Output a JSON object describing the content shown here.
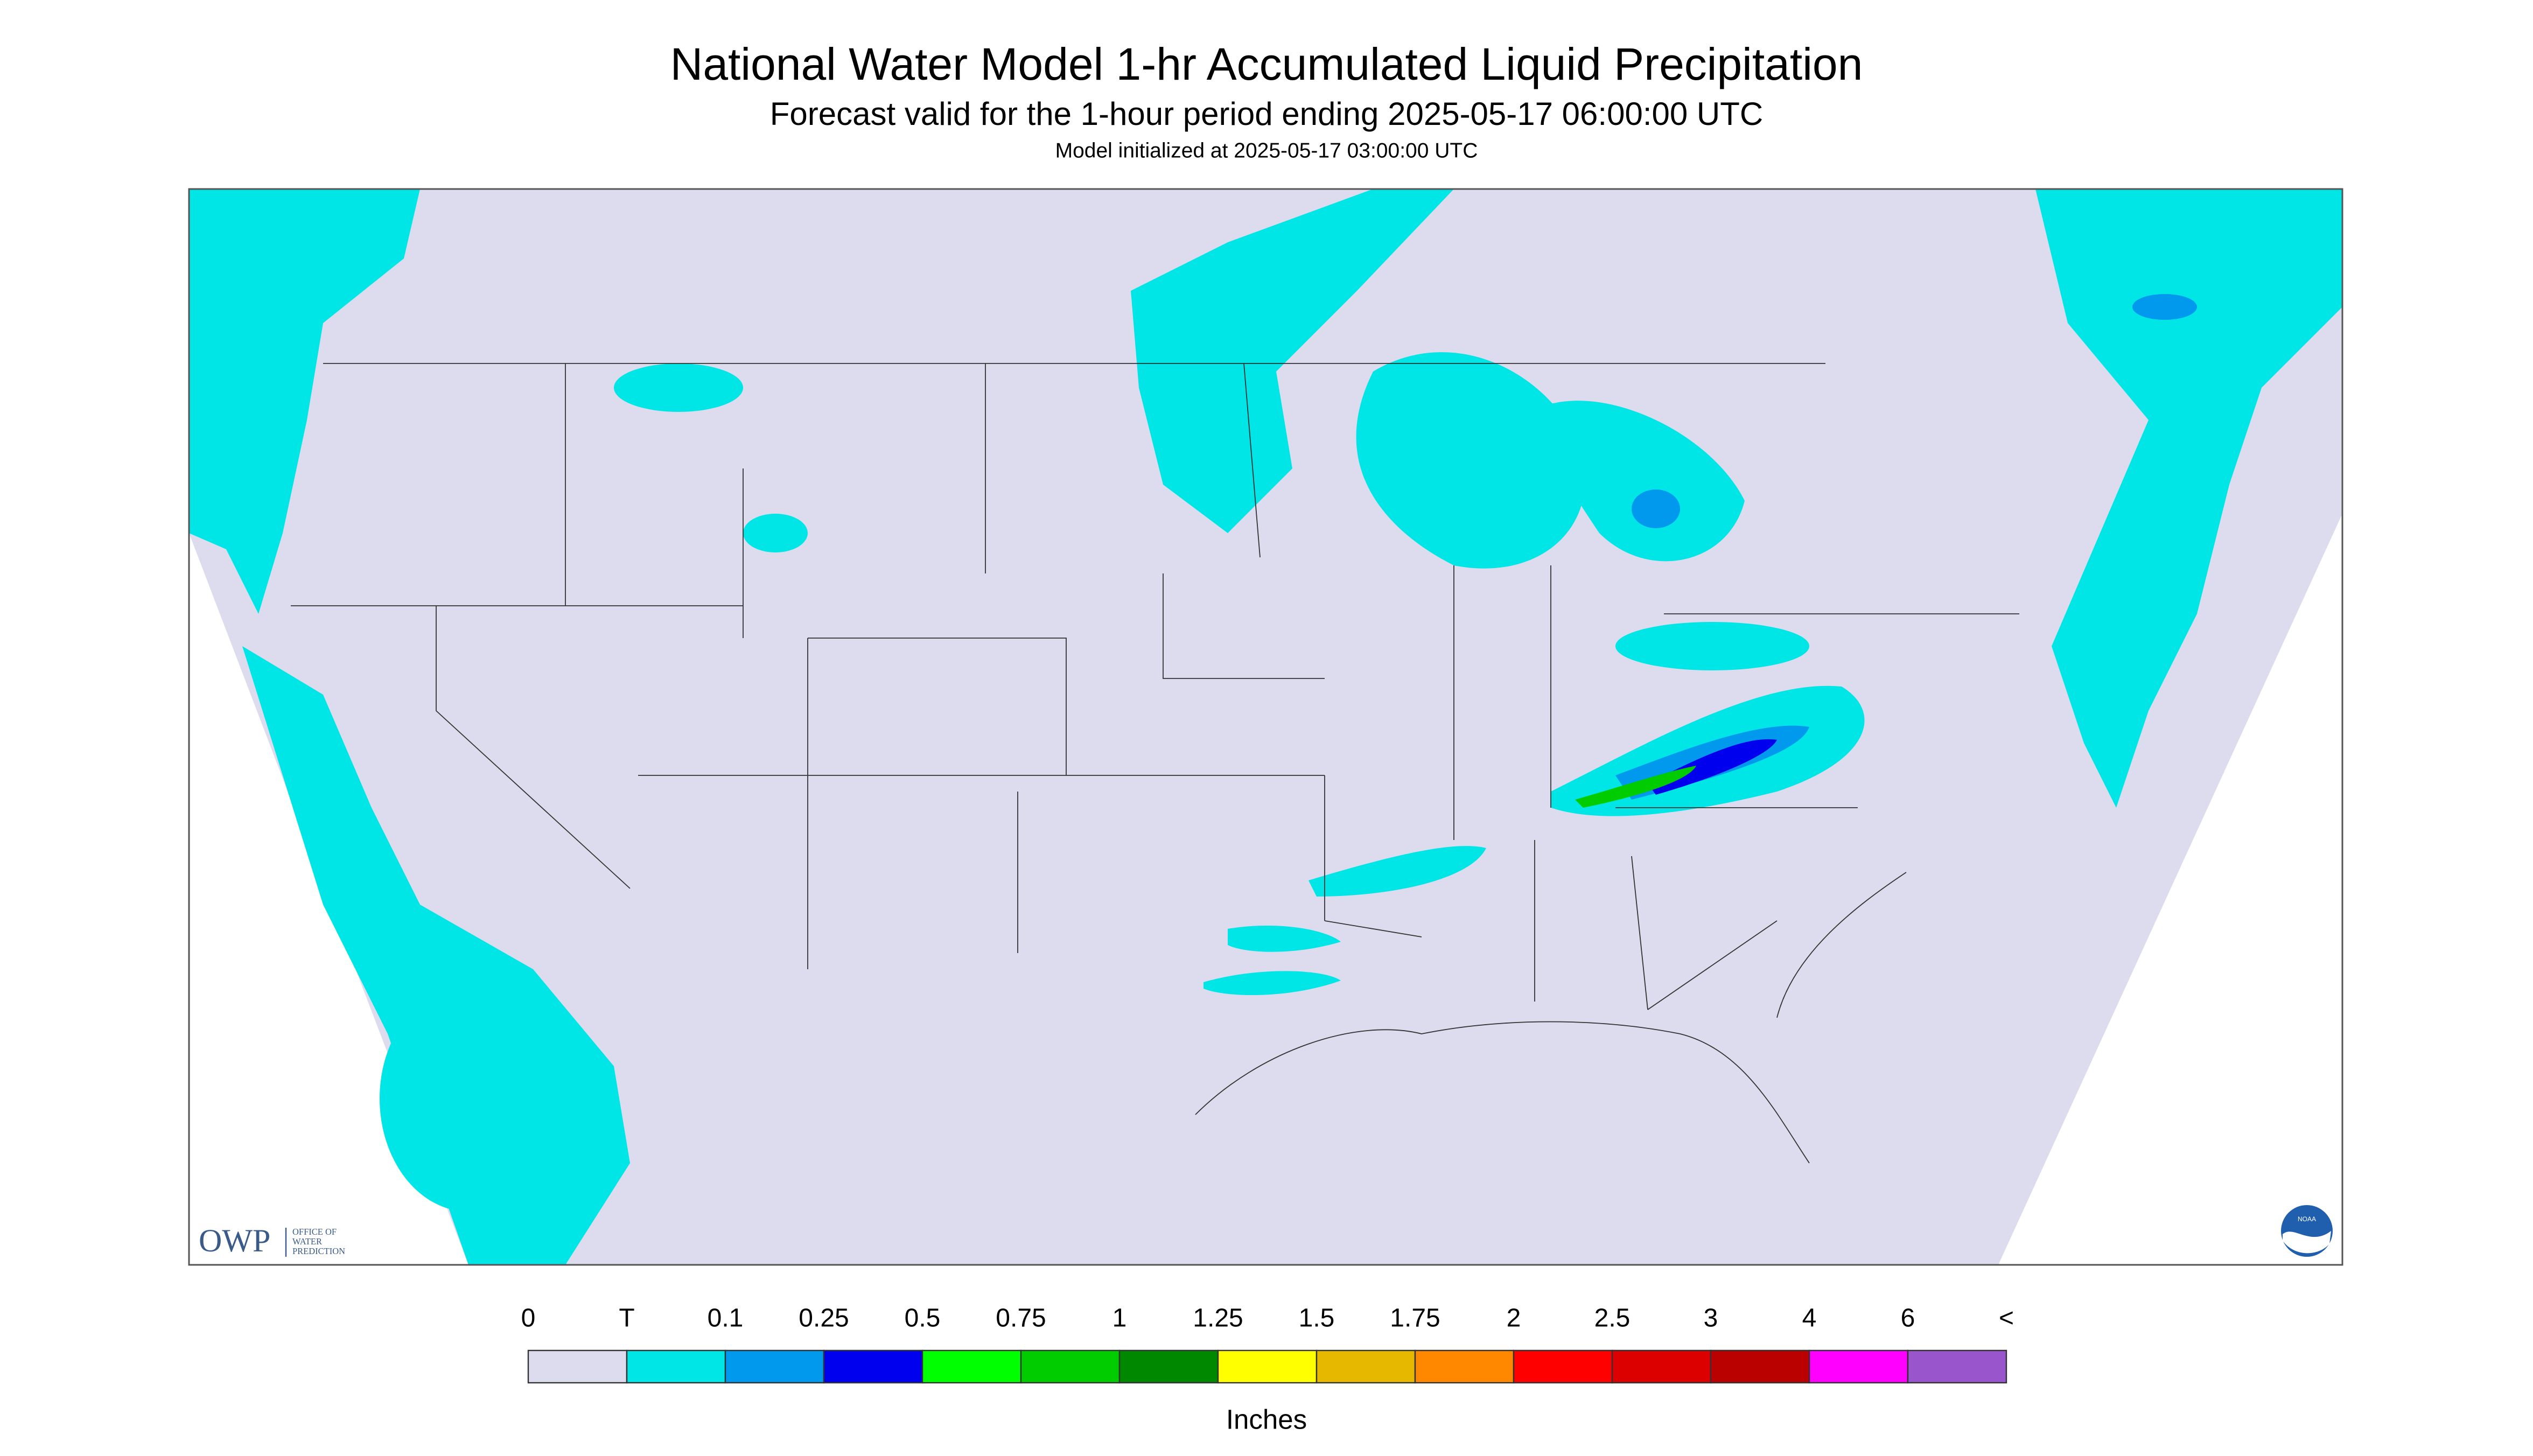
{
  "header": {
    "title": "National Water Model 1-hr Accumulated Liquid Precipitation",
    "subtitle": "Forecast valid for the 1-hour period ending 2025-05-17 06:00:00 UTC",
    "note": "Model initialized at 2025-05-17 03:00:00 UTC"
  },
  "logos": {
    "owp": "OWP",
    "owp_lines": [
      "OFFICE OF",
      "WATER",
      "PREDICTION"
    ],
    "noaa": "NOAA"
  },
  "legend": {
    "labels": [
      "0",
      "T",
      "0.1",
      "0.25",
      "0.5",
      "0.75",
      "1",
      "1.25",
      "1.5",
      "1.75",
      "2",
      "2.5",
      "3",
      "4",
      "6",
      "<"
    ],
    "colors": [
      "#dcdcee",
      "#00e5e5",
      "#0099ee",
      "#0000ee",
      "#00ff00",
      "#00cc00",
      "#008800",
      "#ffff00",
      "#e6b800",
      "#ff8800",
      "#ff0000",
      "#dd0000",
      "#bb0000",
      "#ff00ff",
      "#9955cc"
    ],
    "unit": "Inches"
  }
}
